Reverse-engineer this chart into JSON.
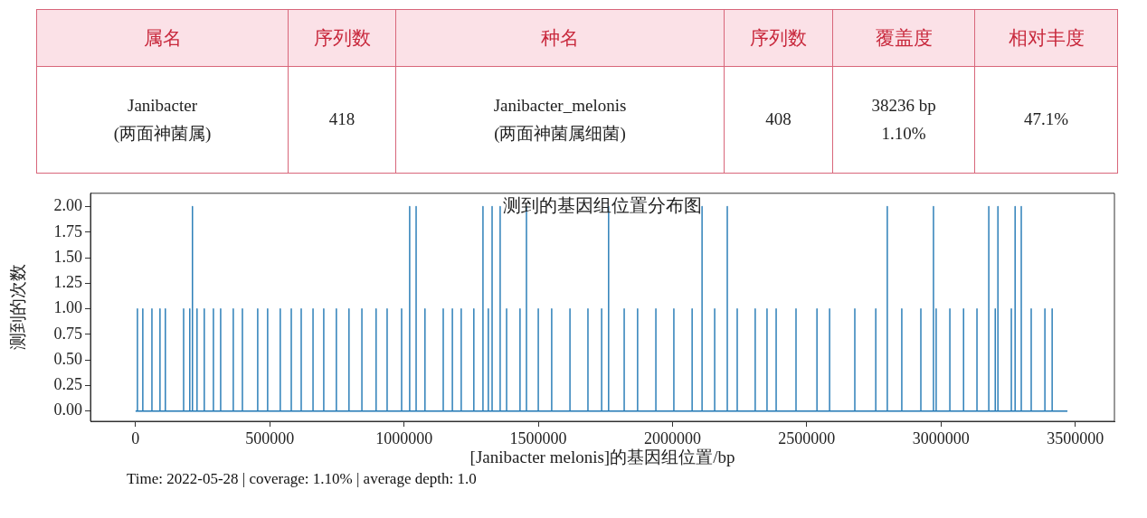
{
  "chart_data": [
    {
      "type": "other",
      "categories": [
        "属名",
        "序列数",
        "种名",
        "序列数",
        "覆盖度",
        "相对丰度"
      ],
      "annotations": [
        "Janibacter\n(两面神菌属)",
        "418",
        "Janibacter_melonis\n(两面神菌属细菌)",
        "408",
        "38236 bp\n1.10%",
        "47.1%"
      ]
    },
    {
      "type": "line",
      "title": "测到的基因组位置分布图",
      "xlabel": "[Janibacter melonis]的基因组位置/bp",
      "ylabel": "测到的次数",
      "annotations": [
        "Time: 2022-05-28 | coverage: 1.10% | average depth: 1.0"
      ],
      "series": [
        {
          "color": "#1f77b4",
          "x": [
            0,
            7000,
            7000,
            7000,
            27000,
            27000,
            27000,
            61000,
            61000,
            61000,
            91000,
            91000,
            91000,
            111000,
            111000,
            111000,
            179000,
            179000,
            179000,
            202000,
            202000,
            202000,
            212000,
            212000,
            212000,
            229000,
            229000,
            229000,
            256000,
            256000,
            256000,
            290000,
            290000,
            290000,
            317000,
            317000,
            317000,
            364000,
            364000,
            364000,
            398000,
            398000,
            398000,
            455000,
            455000,
            455000,
            492000,
            492000,
            492000,
            539000,
            539000,
            539000,
            580000,
            580000,
            580000,
            617000,
            617000,
            617000,
            661000,
            661000,
            661000,
            701000,
            701000,
            701000,
            748000,
            748000,
            748000,
            795000,
            795000,
            795000,
            843000,
            843000,
            843000,
            896000,
            896000,
            896000,
            937000,
            937000,
            937000,
            991000,
            991000,
            991000,
            1021000,
            1021000,
            1021000,
            1045000,
            1045000,
            1045000,
            1078000,
            1078000,
            1078000,
            1146000,
            1146000,
            1146000,
            1180000,
            1180000,
            1180000,
            1213000,
            1213000,
            1213000,
            1260000,
            1260000,
            1260000,
            1294000,
            1294000,
            1294000,
            1314000,
            1314000,
            1314000,
            1328000,
            1328000,
            1328000,
            1358000,
            1358000,
            1358000,
            1382000,
            1382000,
            1382000,
            1432000,
            1432000,
            1432000,
            1456000,
            1456000,
            1456000,
            1500000,
            1500000,
            1500000,
            1550000,
            1550000,
            1550000,
            1618000,
            1618000,
            1618000,
            1685000,
            1685000,
            1685000,
            1736000,
            1736000,
            1736000,
            1762000,
            1762000,
            1762000,
            1820000,
            1820000,
            1820000,
            1870000,
            1870000,
            1870000,
            1938000,
            1938000,
            1938000,
            2005000,
            2005000,
            2005000,
            2073000,
            2073000,
            2073000,
            2110000,
            2110000,
            2110000,
            2157000,
            2157000,
            2157000,
            2204000,
            2204000,
            2204000,
            2241000,
            2241000,
            2241000,
            2308000,
            2308000,
            2308000,
            2352000,
            2352000,
            2352000,
            2386000,
            2386000,
            2386000,
            2460000,
            2460000,
            2460000,
            2538000,
            2538000,
            2538000,
            2585000,
            2585000,
            2585000,
            2679000,
            2679000,
            2679000,
            2757000,
            2757000,
            2757000,
            2800000,
            2800000,
            2800000,
            2854000,
            2854000,
            2854000,
            2925000,
            2925000,
            2925000,
            2972000,
            2972000,
            2972000,
            2982000,
            2982000,
            2982000,
            3033000,
            3033000,
            3033000,
            3084000,
            3084000,
            3084000,
            3134000,
            3134000,
            3134000,
            3178000,
            3178000,
            3178000,
            3202000,
            3202000,
            3202000,
            3212000,
            3212000,
            3212000,
            3262000,
            3262000,
            3262000,
            3276000,
            3276000,
            3276000,
            3299000,
            3299000,
            3299000,
            3336000,
            3336000,
            3336000,
            3387000,
            3387000,
            3387000,
            3414000,
            3414000,
            3414000,
            3471000
          ],
          "values": [
            0,
            0,
            1,
            0,
            0,
            1,
            0,
            0,
            1,
            0,
            0,
            1,
            0,
            0,
            1,
            0,
            0,
            1,
            0,
            0,
            1,
            0,
            0,
            2,
            0,
            0,
            1,
            0,
            0,
            1,
            0,
            0,
            1,
            0,
            0,
            1,
            0,
            0,
            1,
            0,
            0,
            1,
            0,
            0,
            1,
            0,
            0,
            1,
            0,
            0,
            1,
            0,
            0,
            1,
            0,
            0,
            1,
            0,
            0,
            1,
            0,
            0,
            1,
            0,
            0,
            1,
            0,
            0,
            1,
            0,
            0,
            1,
            0,
            0,
            1,
            0,
            0,
            1,
            0,
            0,
            1,
            0,
            0,
            2,
            0,
            0,
            2,
            0,
            0,
            1,
            0,
            0,
            1,
            0,
            0,
            1,
            0,
            0,
            1,
            0,
            0,
            1,
            0,
            0,
            2,
            0,
            0,
            1,
            0,
            0,
            2,
            0,
            0,
            2,
            0,
            0,
            1,
            0,
            0,
            1,
            0,
            0,
            2,
            0,
            0,
            1,
            0,
            0,
            1,
            0,
            0,
            1,
            0,
            0,
            1,
            0,
            0,
            1,
            0,
            0,
            2,
            0,
            0,
            1,
            0,
            0,
            1,
            0,
            0,
            1,
            0,
            0,
            1,
            0,
            0,
            1,
            0,
            0,
            2,
            0,
            0,
            1,
            0,
            0,
            2,
            0,
            0,
            1,
            0,
            0,
            1,
            0,
            0,
            1,
            0,
            0,
            1,
            0,
            0,
            1,
            0,
            0,
            1,
            0,
            0,
            1,
            0,
            0,
            1,
            0,
            0,
            1,
            0,
            0,
            2,
            0,
            0,
            1,
            0,
            0,
            1,
            0,
            0,
            2,
            0,
            0,
            1,
            0,
            0,
            1,
            0,
            0,
            1,
            0,
            0,
            1,
            0,
            0,
            2,
            0,
            0,
            1,
            0,
            0,
            2,
            0,
            0,
            1,
            0,
            0,
            2,
            0,
            0,
            2,
            0,
            0,
            1,
            0,
            0,
            1,
            0,
            0,
            1,
            0,
            0
          ]
        }
      ],
      "xlim": [
        -168000,
        3646000
      ],
      "xticks": [
        0,
        500000,
        1000000,
        1500000,
        2000000,
        2500000,
        3000000,
        3500000
      ],
      "ylim": [
        -0.1,
        2.13
      ],
      "yticks": [
        {
          "value": 0,
          "label": "0.00"
        },
        {
          "value": 0.25,
          "label": "0.25"
        },
        {
          "value": 0.5,
          "label": "0.50"
        },
        {
          "value": 0.75,
          "label": "0.75"
        },
        {
          "value": 1,
          "label": "1.00"
        },
        {
          "value": 1.25,
          "label": "1.25"
        },
        {
          "value": 1.5,
          "label": "1.50"
        },
        {
          "value": 1.75,
          "label": "1.75"
        },
        {
          "value": 2,
          "label": "2.00"
        }
      ],
      "grid": false,
      "legend": false,
      "marker": "none",
      "line_style": "solid"
    }
  ]
}
